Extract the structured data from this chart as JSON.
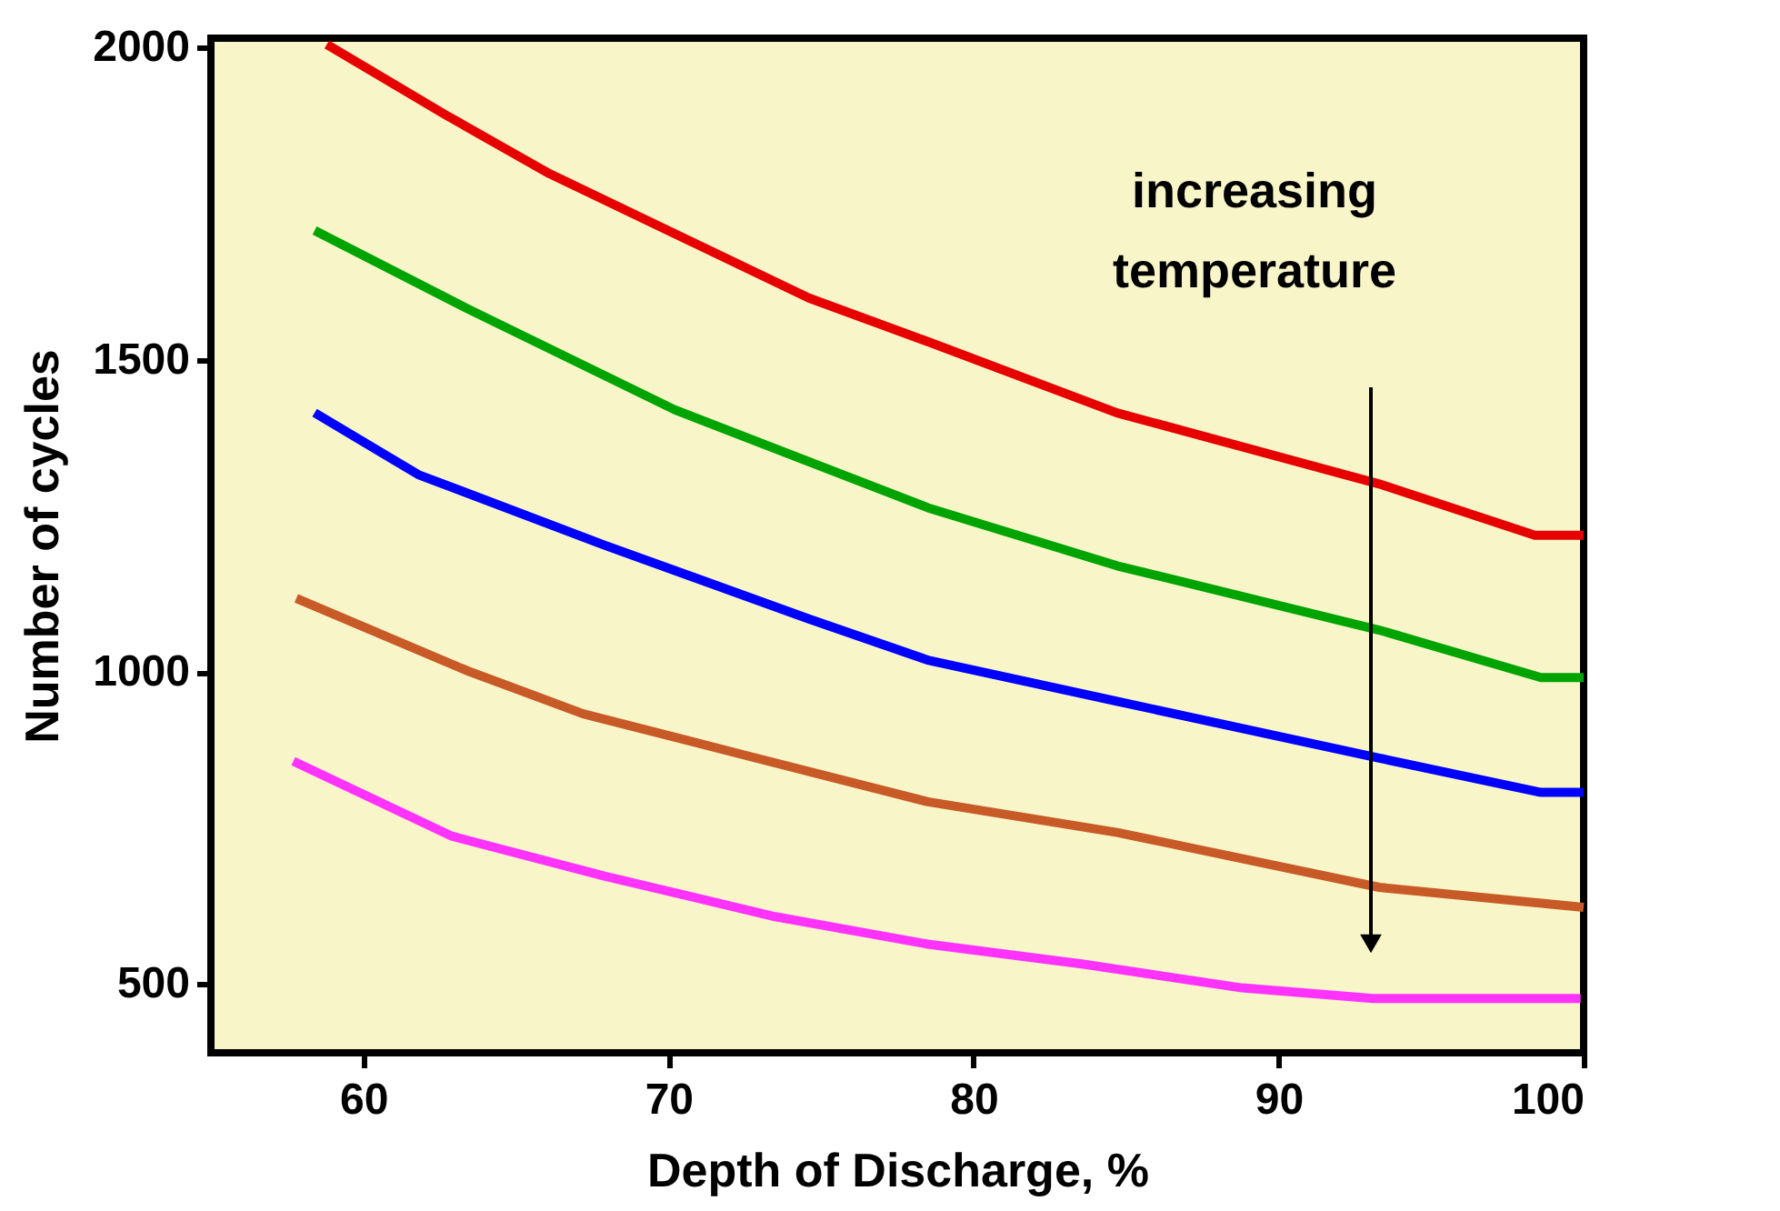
{
  "chart_data": {
    "type": "line",
    "xlabel": "Depth of Discharge, %",
    "ylabel": "Number of cycles",
    "xlim": [
      55,
      100
    ],
    "xticks": [
      60,
      70,
      80,
      90,
      100
    ],
    "ylim": [
      390,
      2015
    ],
    "yticks": [
      500,
      1000,
      1500,
      2000
    ],
    "grid": false,
    "legend": false,
    "marker": "none",
    "line_style": "solid",
    "annotations": [
      "increasing temperature"
    ],
    "series": [
      {
        "color": "#e60000",
        "x": [
          58.8,
          62.7,
          66.1,
          70.2,
          74.6,
          78.5,
          84.7,
          93.3,
          98.4,
          100
        ],
        "values": [
          2005,
          1892,
          1798,
          1702,
          1599,
          1529,
          1415,
          1301,
          1219,
          1219
        ]
      },
      {
        "color": "#00a400",
        "x": [
          58.4,
          63.4,
          70.2,
          78.5,
          84.7,
          93.3,
          98.6,
          100
        ],
        "values": [
          1707,
          1582,
          1420,
          1263,
          1170,
          1067,
          991,
          991
        ]
      },
      {
        "color": "#0000ff",
        "x": [
          58.4,
          61.8,
          67.9,
          74.6,
          78.5,
          84.7,
          93.3,
          98.6,
          100
        ],
        "values": [
          1415,
          1316,
          1203,
          1085,
          1019,
          953,
          862,
          807,
          807
        ]
      },
      {
        "color": "#c85a28",
        "x": [
          57.8,
          63.4,
          67.2,
          72.4,
          78.5,
          84.7,
          93.3,
          100
        ],
        "values": [
          1118,
          1002,
          933,
          868,
          792,
          743,
          655,
          623
        ]
      },
      {
        "color": "#ff33ff",
        "x": [
          57.7,
          62.9,
          67.9,
          73.5,
          78.5,
          83.6,
          88.8,
          93.1,
          99.9
        ],
        "values": [
          857,
          737,
          673,
          608,
          564,
          532,
          494,
          477,
          477
        ]
      }
    ]
  }
}
